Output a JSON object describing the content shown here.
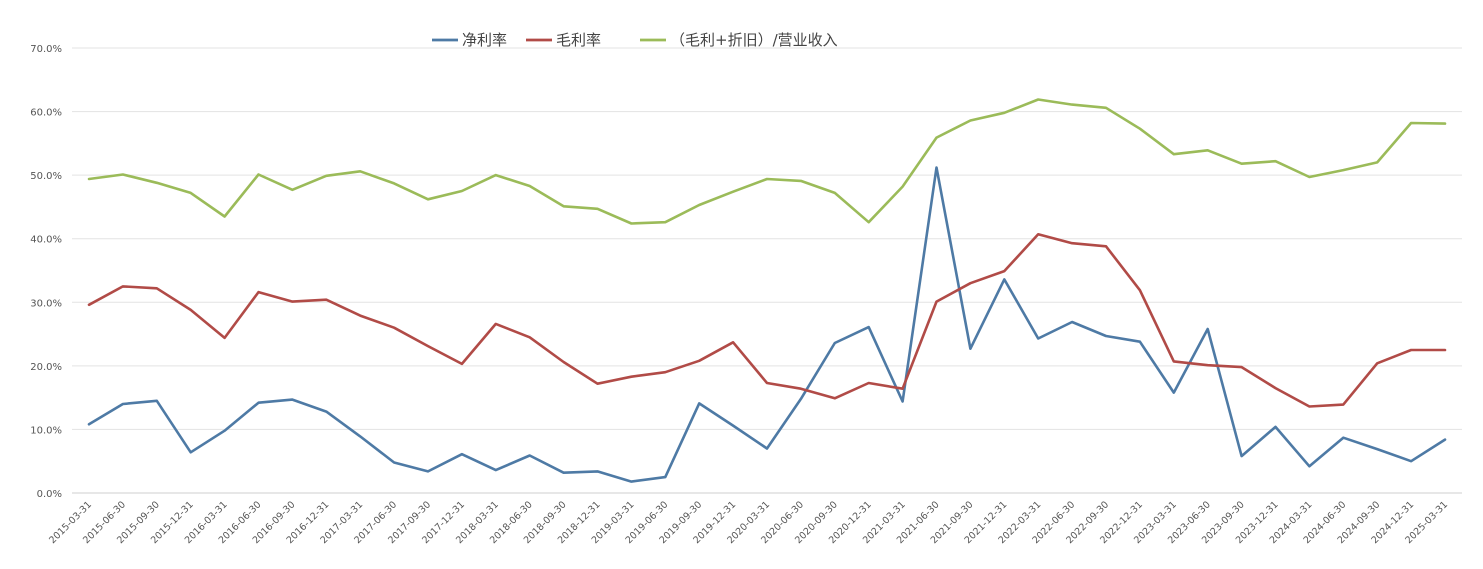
{
  "chart_data": {
    "type": "line",
    "title": "",
    "xlabel": "",
    "ylabel": "",
    "ylim": [
      0,
      70
    ],
    "yticks": [
      "0.0%",
      "10.0%",
      "20.0%",
      "30.0%",
      "40.0%",
      "50.0%",
      "60.0%",
      "70.0%"
    ],
    "grid": "horizontal",
    "legend_position": "top-center",
    "categories": [
      "2015-03-31",
      "2015-06-30",
      "2015-09-30",
      "2015-12-31",
      "2016-03-31",
      "2016-06-30",
      "2016-09-30",
      "2016-12-31",
      "2017-03-31",
      "2017-06-30",
      "2017-09-30",
      "2017-12-31",
      "2018-03-31",
      "2018-06-30",
      "2018-09-30",
      "2018-12-31",
      "2019-03-31",
      "2019-06-30",
      "2019-09-30",
      "2019-12-31",
      "2020-03-31",
      "2020-06-30",
      "2020-09-30",
      "2020-12-31",
      "2021-03-31",
      "2021-06-30",
      "2021-09-30",
      "2021-12-31",
      "2022-03-31",
      "2022-06-30",
      "2022-09-30",
      "2022-12-31",
      "2023-03-31",
      "2023-06-30",
      "2023-09-30",
      "2023-12-31",
      "2024-03-31",
      "2024-06-30",
      "2024-09-30",
      "2024-12-31",
      "2025-03-31"
    ],
    "series": [
      {
        "name": "净利率",
        "color": "#4e7aa5",
        "values": [
          10.8,
          14.0,
          14.5,
          6.4,
          9.8,
          14.2,
          14.7,
          12.8,
          8.9,
          4.8,
          3.4,
          6.1,
          3.6,
          5.9,
          3.2,
          3.4,
          1.8,
          2.5,
          14.1,
          10.6,
          7.0,
          14.8,
          23.6,
          26.1,
          14.4,
          51.2,
          22.7,
          33.6,
          24.3,
          26.9,
          24.7,
          23.8,
          15.8,
          25.8,
          5.8,
          10.4,
          4.2,
          8.7,
          6.9,
          5.0,
          8.4
        ]
      },
      {
        "name": "毛利率",
        "color": "#b14b47",
        "values": [
          29.6,
          32.5,
          32.2,
          28.8,
          24.4,
          31.6,
          30.1,
          30.4,
          27.9,
          26.0,
          23.1,
          20.3,
          26.6,
          24.5,
          20.6,
          17.2,
          18.3,
          19.0,
          20.8,
          23.7,
          17.3,
          16.4,
          14.9,
          17.3,
          16.4,
          30.1,
          33.0,
          34.9,
          40.7,
          39.3,
          38.8,
          31.9,
          20.7,
          20.1,
          19.8,
          16.5,
          13.6,
          13.9,
          20.4,
          22.5,
          22.5
        ]
      },
      {
        "name": "（毛利+折旧）/营业收入",
        "color": "#9bbb59",
        "values": [
          49.4,
          50.1,
          48.8,
          47.2,
          43.5,
          50.1,
          47.7,
          49.9,
          50.6,
          48.7,
          46.2,
          47.5,
          50.0,
          48.3,
          45.1,
          44.7,
          42.4,
          42.6,
          45.3,
          47.4,
          49.4,
          49.1,
          47.2,
          42.6,
          48.2,
          55.9,
          58.6,
          59.8,
          61.9,
          61.1,
          60.6,
          57.3,
          53.3,
          53.9,
          51.8,
          52.2,
          49.7,
          50.8,
          52.0,
          58.2,
          58.1
        ]
      }
    ]
  }
}
